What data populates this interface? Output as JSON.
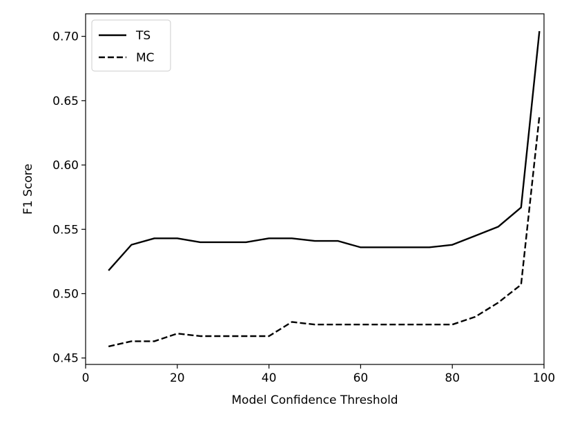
{
  "chart_data": {
    "type": "line",
    "title": "",
    "xlabel": "Model Confidence Threshold",
    "ylabel": "F1 Score",
    "xlim": [
      0,
      100
    ],
    "ylim": [
      0.445,
      0.7175
    ],
    "xticks": [
      0,
      20,
      40,
      60,
      80,
      100
    ],
    "yticks": [
      0.45,
      0.5,
      0.55,
      0.6,
      0.65,
      0.7
    ],
    "legend_position": "top-left",
    "grid": false,
    "x": [
      5,
      10,
      15,
      20,
      25,
      30,
      35,
      40,
      45,
      50,
      55,
      60,
      65,
      70,
      75,
      80,
      85,
      90,
      95,
      99
    ],
    "series": [
      {
        "name": "TS",
        "style": "solid",
        "color": "#000000",
        "values": [
          0.518,
          0.538,
          0.543,
          0.543,
          0.54,
          0.54,
          0.54,
          0.543,
          0.543,
          0.541,
          0.541,
          0.536,
          0.536,
          0.536,
          0.536,
          0.538,
          0.545,
          0.552,
          0.567,
          0.704
        ]
      },
      {
        "name": "MC",
        "style": "dashed",
        "color": "#000000",
        "values": [
          0.459,
          0.463,
          0.463,
          0.469,
          0.467,
          0.467,
          0.467,
          0.467,
          0.478,
          0.476,
          0.476,
          0.476,
          0.476,
          0.476,
          0.476,
          0.476,
          0.482,
          0.493,
          0.507,
          0.638
        ]
      }
    ]
  }
}
